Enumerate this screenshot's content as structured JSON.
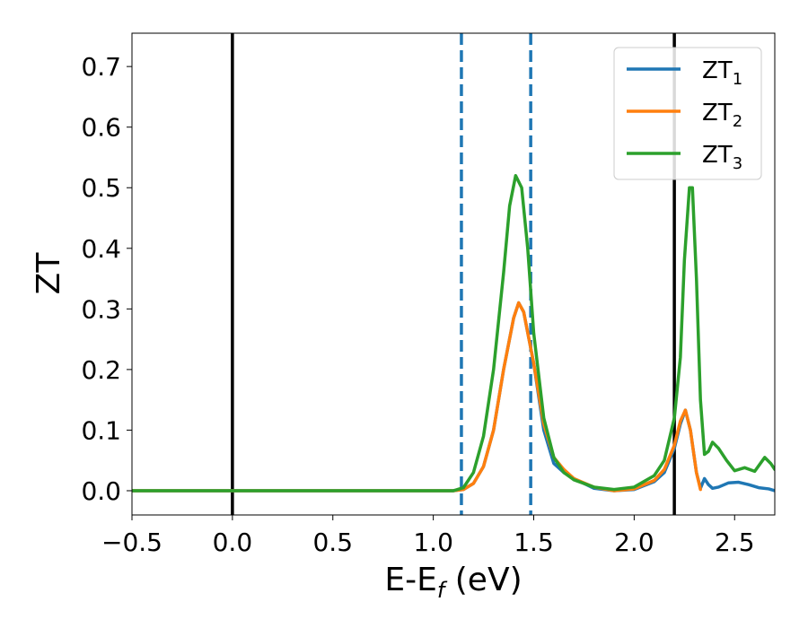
{
  "chart_data": {
    "type": "line",
    "xlabel": "E-E",
    "xlabel_sub": "f",
    "xlabel_unit": " (eV)",
    "ylabel": "ZT",
    "xlim": [
      -0.5,
      2.7
    ],
    "ylim": [
      -0.04,
      0.755
    ],
    "x_ticks": [
      -0.5,
      0.0,
      0.5,
      1.0,
      1.5,
      2.0,
      2.5
    ],
    "x_tick_labels": [
      "−0.5",
      "0.0",
      "0.5",
      "1.0",
      "1.5",
      "2.0",
      "2.5"
    ],
    "y_ticks": [
      0.0,
      0.1,
      0.2,
      0.3,
      0.4,
      0.5,
      0.6,
      0.7
    ],
    "y_tick_labels": [
      "0.0",
      "0.1",
      "0.2",
      "0.3",
      "0.4",
      "0.5",
      "0.6",
      "0.7"
    ],
    "grid": false,
    "legend_position": "top-right",
    "vertical_lines": [
      {
        "x": 0.0,
        "style": "solid",
        "color": "#000000"
      },
      {
        "x": 2.2,
        "style": "solid",
        "color": "#000000"
      },
      {
        "x": 1.14,
        "style": "dashed",
        "color": "#1f77b4"
      },
      {
        "x": 1.485,
        "style": "dashed",
        "color": "#1f77b4"
      }
    ],
    "series": [
      {
        "name": "ZT",
        "subscript": "1",
        "color": "#1f77b4",
        "points": [
          [
            -0.5,
            0.0
          ],
          [
            1.1,
            0.0
          ],
          [
            1.15,
            0.002
          ],
          [
            1.2,
            0.012
          ],
          [
            1.25,
            0.04
          ],
          [
            1.3,
            0.1
          ],
          [
            1.35,
            0.2
          ],
          [
            1.4,
            0.285
          ],
          [
            1.425,
            0.31
          ],
          [
            1.45,
            0.295
          ],
          [
            1.5,
            0.21
          ],
          [
            1.55,
            0.1
          ],
          [
            1.6,
            0.045
          ],
          [
            1.65,
            0.03
          ],
          [
            1.7,
            0.02
          ],
          [
            1.8,
            0.004
          ],
          [
            1.9,
            0.0
          ],
          [
            2.0,
            0.002
          ],
          [
            2.1,
            0.015
          ],
          [
            2.15,
            0.03
          ],
          [
            2.2,
            0.07
          ],
          [
            2.23,
            0.11
          ],
          [
            2.255,
            0.133
          ],
          [
            2.28,
            0.1
          ],
          [
            2.31,
            0.03
          ],
          [
            2.33,
            0.004
          ],
          [
            2.35,
            0.02
          ],
          [
            2.37,
            0.01
          ],
          [
            2.39,
            0.004
          ],
          [
            2.42,
            0.006
          ],
          [
            2.47,
            0.013
          ],
          [
            2.52,
            0.014
          ],
          [
            2.57,
            0.01
          ],
          [
            2.62,
            0.005
          ],
          [
            2.67,
            0.003
          ],
          [
            2.7,
            0.0
          ]
        ]
      },
      {
        "name": "ZT",
        "subscript": "2",
        "color": "#ff7f0e",
        "points": [
          [
            -0.5,
            0.0
          ],
          [
            1.1,
            0.0
          ],
          [
            1.15,
            0.002
          ],
          [
            1.2,
            0.012
          ],
          [
            1.25,
            0.04
          ],
          [
            1.3,
            0.1
          ],
          [
            1.35,
            0.2
          ],
          [
            1.4,
            0.285
          ],
          [
            1.425,
            0.31
          ],
          [
            1.45,
            0.295
          ],
          [
            1.5,
            0.21
          ],
          [
            1.55,
            0.11
          ],
          [
            1.6,
            0.055
          ],
          [
            1.65,
            0.035
          ],
          [
            1.7,
            0.02
          ],
          [
            1.8,
            0.006
          ],
          [
            1.9,
            0.0
          ],
          [
            2.0,
            0.003
          ],
          [
            2.1,
            0.017
          ],
          [
            2.15,
            0.035
          ],
          [
            2.2,
            0.075
          ],
          [
            2.23,
            0.115
          ],
          [
            2.255,
            0.133
          ],
          [
            2.28,
            0.1
          ],
          [
            2.31,
            0.03
          ],
          [
            2.33,
            0.002
          ]
        ]
      },
      {
        "name": "ZT",
        "subscript": "3",
        "color": "#2ca02c",
        "points": [
          [
            -0.5,
            0.0
          ],
          [
            1.1,
            0.0
          ],
          [
            1.15,
            0.005
          ],
          [
            1.2,
            0.03
          ],
          [
            1.25,
            0.09
          ],
          [
            1.3,
            0.2
          ],
          [
            1.35,
            0.36
          ],
          [
            1.38,
            0.47
          ],
          [
            1.41,
            0.52
          ],
          [
            1.44,
            0.5
          ],
          [
            1.47,
            0.4
          ],
          [
            1.5,
            0.26
          ],
          [
            1.55,
            0.12
          ],
          [
            1.6,
            0.055
          ],
          [
            1.65,
            0.03
          ],
          [
            1.7,
            0.018
          ],
          [
            1.8,
            0.006
          ],
          [
            1.9,
            0.002
          ],
          [
            2.0,
            0.006
          ],
          [
            2.1,
            0.025
          ],
          [
            2.15,
            0.05
          ],
          [
            2.2,
            0.12
          ],
          [
            2.23,
            0.22
          ],
          [
            2.25,
            0.38
          ],
          [
            2.275,
            0.5
          ],
          [
            2.29,
            0.5
          ],
          [
            2.31,
            0.35
          ],
          [
            2.33,
            0.15
          ],
          [
            2.35,
            0.06
          ],
          [
            2.37,
            0.065
          ],
          [
            2.39,
            0.08
          ],
          [
            2.42,
            0.07
          ],
          [
            2.46,
            0.05
          ],
          [
            2.5,
            0.033
          ],
          [
            2.55,
            0.038
          ],
          [
            2.6,
            0.032
          ],
          [
            2.65,
            0.055
          ],
          [
            2.68,
            0.045
          ],
          [
            2.7,
            0.035
          ]
        ]
      }
    ]
  }
}
